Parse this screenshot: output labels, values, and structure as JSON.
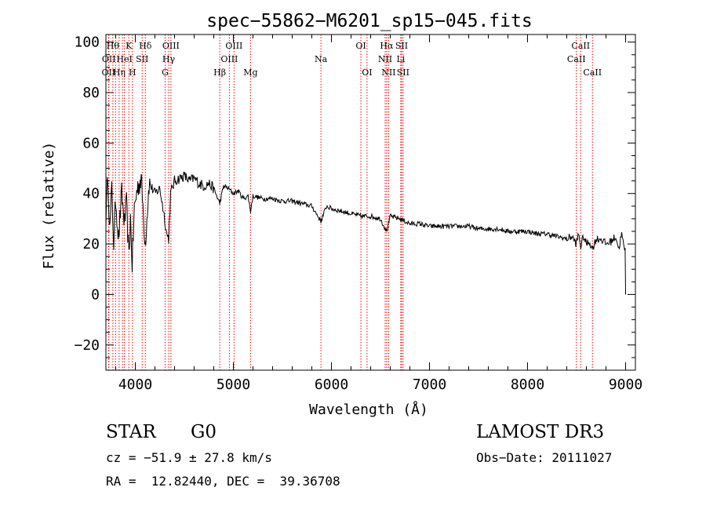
{
  "chart_data": {
    "type": "line",
    "title": "spec−55862−M6201_sp15−045.fits",
    "xlabel": "Wavelength (Å)",
    "ylabel": "Flux (relative)",
    "xlim": [
      3700,
      9100
    ],
    "ylim": [
      -30,
      103
    ],
    "xticks": [
      4000,
      5000,
      6000,
      7000,
      8000,
      9000
    ],
    "xtick_labels": [
      "4000",
      "5000",
      "6000",
      "7000",
      "8000",
      "9000"
    ],
    "yticks": [
      -20,
      0,
      20,
      40,
      60,
      80,
      100
    ],
    "ytick_labels": [
      "−20",
      "0",
      "20",
      "40",
      "60",
      "80",
      "100"
    ],
    "line_color": "#ff0000",
    "series": [
      {
        "name": "flux",
        "color": "#000000",
        "x": [
          3700,
          3720,
          3740,
          3760,
          3780,
          3800,
          3830,
          3860,
          3890,
          3910,
          3934,
          3950,
          3968,
          3990,
          4020,
          4060,
          4101,
          4140,
          4200,
          4250,
          4300,
          4320,
          4340,
          4360,
          4400,
          4450,
          4500,
          4550,
          4600,
          4650,
          4700,
          4750,
          4800,
          4861,
          4900,
          4950,
          5000,
          5050,
          5100,
          5150,
          5175,
          5200,
          5300,
          5400,
          5500,
          5600,
          5700,
          5800,
          5893,
          5950,
          6000,
          6100,
          6200,
          6300,
          6400,
          6500,
          6563,
          6600,
          6700,
          6800,
          6900,
          7000,
          7100,
          7200,
          7300,
          7400,
          7500,
          7600,
          7700,
          7800,
          7900,
          8000,
          8100,
          8200,
          8300,
          8400,
          8450,
          8498,
          8520,
          8542,
          8570,
          8600,
          8630,
          8662,
          8700,
          8750,
          8800,
          8850,
          8900,
          8930,
          8960,
          8980,
          8995,
          9000
        ],
        "y": [
          30,
          48,
          25,
          42,
          20,
          38,
          22,
          40,
          28,
          36,
          14,
          30,
          12,
          34,
          42,
          46,
          20,
          44,
          40,
          42,
          30,
          24,
          22,
          40,
          45,
          46,
          47,
          45,
          46,
          44,
          43,
          44,
          42,
          36,
          43,
          42,
          40,
          41,
          38,
          39,
          33,
          39,
          38,
          38,
          37,
          37,
          36,
          35,
          29,
          35,
          34,
          33,
          32,
          31,
          31,
          30,
          25,
          31,
          30,
          28,
          28,
          27,
          27,
          27,
          27,
          27,
          26,
          26,
          26,
          25,
          25,
          25,
          24,
          24,
          23,
          22,
          23,
          20,
          24,
          19,
          23,
          20,
          21,
          18,
          22,
          22,
          20,
          21,
          23,
          18,
          24,
          19,
          18,
          0
        ]
      }
    ],
    "lines": [
      {
        "x": 3727,
        "label": "OII",
        "row": 3
      },
      {
        "x": 3730,
        "label": "OII",
        "row": 2
      },
      {
        "x": 3771,
        "label": "Hθ",
        "row": 1
      },
      {
        "x": 3798,
        "label": "",
        "row": 0
      },
      {
        "x": 3835,
        "label": "Hη",
        "row": 3
      },
      {
        "x": 3869,
        "label": "",
        "row": 0
      },
      {
        "x": 3889,
        "label": "HeI",
        "row": 2
      },
      {
        "x": 3934,
        "label": "K",
        "row": 1
      },
      {
        "x": 3970,
        "label": "H",
        "row": 3
      },
      {
        "x": 4070,
        "label": "SII",
        "row": 2
      },
      {
        "x": 4102,
        "label": "Hδ",
        "row": 1
      },
      {
        "x": 4304,
        "label": "G",
        "row": 3
      },
      {
        "x": 4340,
        "label": "Hγ",
        "row": 2
      },
      {
        "x": 4363,
        "label": "OIII",
        "row": 1
      },
      {
        "x": 4861,
        "label": "Hβ",
        "row": 3
      },
      {
        "x": 4959,
        "label": "OIII",
        "row": 2
      },
      {
        "x": 5007,
        "label": "OIII",
        "row": 1
      },
      {
        "x": 5175,
        "label": "Mg",
        "row": 3
      },
      {
        "x": 5893,
        "label": "Na",
        "row": 2
      },
      {
        "x": 6300,
        "label": "OI",
        "row": 1
      },
      {
        "x": 6363,
        "label": "OI",
        "row": 3
      },
      {
        "x": 6548,
        "label": "NII",
        "row": 2
      },
      {
        "x": 6563,
        "label": "Hα",
        "row": 1
      },
      {
        "x": 6583,
        "label": "NII",
        "row": 3
      },
      {
        "x": 6707,
        "label": "Li",
        "row": 2
      },
      {
        "x": 6716,
        "label": "SII",
        "row": 1
      },
      {
        "x": 6731,
        "label": "SII",
        "row": 3
      },
      {
        "x": 8498,
        "label": "CaII",
        "row": 2
      },
      {
        "x": 8542,
        "label": "CaII",
        "row": 1
      },
      {
        "x": 8662,
        "label": "CaII",
        "row": 3
      }
    ]
  },
  "info": {
    "object_class": "STAR",
    "subclass": "G0",
    "survey": "LAMOST DR3",
    "cz": "cz = −51.9 ± 27.8 km/s",
    "obs_date": "Obs−Date: 20111027",
    "coords": "RA =  12.82440, DEC =  39.36708"
  }
}
